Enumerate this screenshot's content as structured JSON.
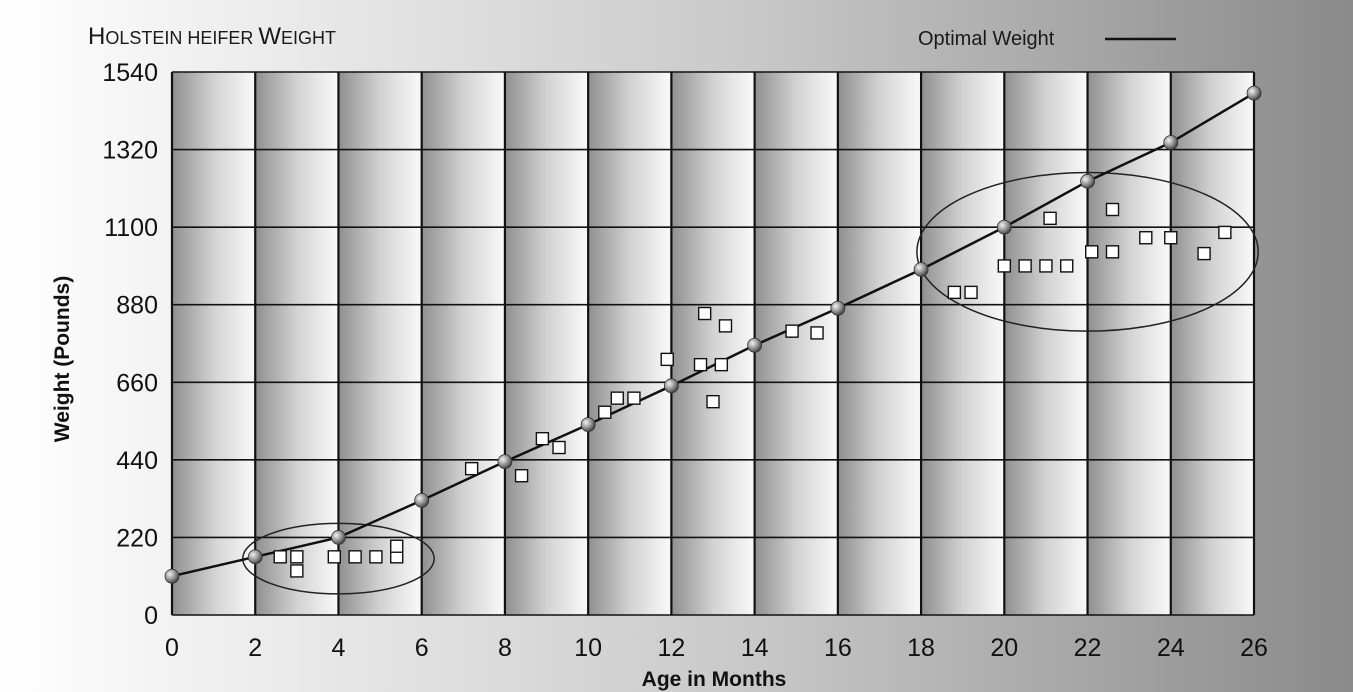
{
  "chart_data": {
    "type": "scatter",
    "title_html_parts": [
      "H",
      "OLSTEIN HEIFER ",
      "W",
      "EIGHT"
    ],
    "title": "Holstein heifer Weight",
    "xlabel": "Age in Months",
    "ylabel": "Weight (Pounds)",
    "xlim": [
      0,
      26
    ],
    "ylim": [
      0,
      1540
    ],
    "xticks": [
      "0",
      "2",
      "4",
      "6",
      "8",
      "10",
      "12",
      "14",
      "16",
      "18",
      "20",
      "22",
      "24",
      "26"
    ],
    "yticks": [
      "0",
      "220",
      "440",
      "660",
      "880",
      "1100",
      "1320",
      "1540"
    ],
    "legend": {
      "label": "Optimal Weight",
      "position": "top-right"
    },
    "series": [
      {
        "name": "Optimal Weight",
        "kind": "line",
        "x": [
          0,
          2,
          4,
          6,
          8,
          10,
          12,
          14,
          16,
          18,
          20,
          22,
          24,
          26
        ],
        "y": [
          110,
          165,
          220,
          325,
          435,
          540,
          650,
          765,
          870,
          980,
          1100,
          1230,
          1340,
          1480
        ]
      },
      {
        "kind": "points",
        "x": [
          2.6,
          3.0,
          3.0,
          3.9,
          4.4,
          4.9,
          5.4,
          5.4,
          7.2,
          8.4,
          8.9,
          9.3,
          10.4,
          10.7,
          11.1,
          11.9,
          12.7,
          12.8,
          13.0,
          13.2,
          13.3,
          14.9,
          15.5,
          18.8,
          19.2,
          20.0,
          20.5,
          21.0,
          21.1,
          21.5,
          22.1,
          22.6,
          22.6,
          23.4,
          24.0,
          24.8,
          25.3
        ],
        "y": [
          165,
          165,
          125,
          165,
          165,
          165,
          165,
          195,
          415,
          395,
          500,
          475,
          575,
          615,
          615,
          725,
          710,
          855,
          605,
          710,
          820,
          805,
          800,
          915,
          915,
          990,
          990,
          990,
          1125,
          990,
          1030,
          1030,
          1150,
          1070,
          1070,
          1025,
          1085
        ]
      }
    ],
    "annotations": [
      {
        "shape": "ellipse",
        "cx": 4.0,
        "cy": 160,
        "rx_months": 2.3,
        "ry_pounds": 100
      },
      {
        "shape": "ellipse",
        "cx": 22.0,
        "cy": 1030,
        "rx_months": 4.1,
        "ry_pounds": 225
      }
    ],
    "grid": true,
    "background_bands": true
  }
}
